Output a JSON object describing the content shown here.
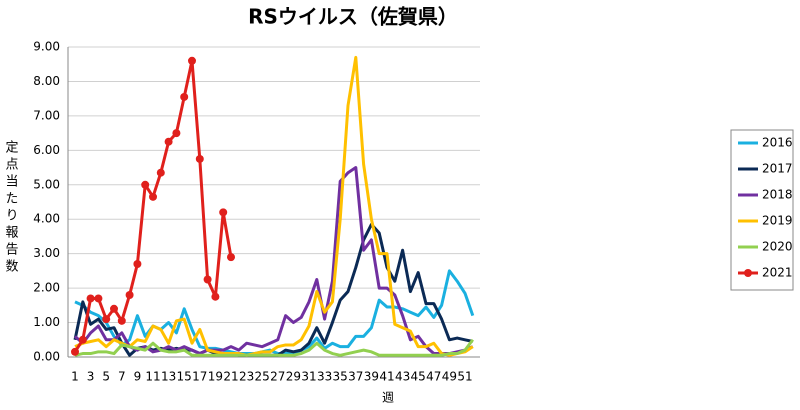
{
  "chart_data": {
    "type": "line",
    "title": "RSウイルス（佐賀県）",
    "x_label": "週",
    "y_label": "定点当たり報告数",
    "categories": [
      1,
      null,
      3,
      null,
      5,
      null,
      7,
      null,
      9,
      null,
      11,
      null,
      13,
      null,
      15,
      null,
      17,
      null,
      19,
      null,
      21,
      null,
      23,
      null,
      25,
      null,
      27,
      null,
      29,
      null,
      31,
      null,
      33,
      null,
      35,
      null,
      37,
      null,
      39,
      null,
      41,
      null,
      43,
      null,
      45,
      null,
      47,
      null,
      49,
      null,
      51,
      null
    ],
    "ylim": [
      0,
      9
    ],
    "yticks": [
      {
        "value": 0,
        "label": "0.00"
      },
      {
        "value": 1,
        "label": "1.00"
      },
      {
        "value": 2,
        "label": "2.00"
      },
      {
        "value": 3,
        "label": "3.00"
      },
      {
        "value": 4,
        "label": "4.00"
      },
      {
        "value": 5,
        "label": "5.00"
      },
      {
        "value": 6,
        "label": "6.00"
      },
      {
        "value": 7,
        "label": "7.00"
      },
      {
        "value": 8,
        "label": "8.00"
      },
      {
        "value": 9,
        "label": "9.00"
      }
    ],
    "grid": true,
    "legend": "right",
    "series": [
      {
        "name": "2016",
        "color": "#1ab0e0",
        "values": [
          1.6,
          1.5,
          1.3,
          1.2,
          1.0,
          0.6,
          0.35,
          0.5,
          1.2,
          0.6,
          0.9,
          0.8,
          1.0,
          0.7,
          1.4,
          0.8,
          0.3,
          0.25,
          0.25,
          0.2,
          0.15,
          0.1,
          0.1,
          0.1,
          0.15,
          0.2,
          0.1,
          0.1,
          0.1,
          0.2,
          0.3,
          0.55,
          0.25,
          0.4,
          0.3,
          0.3,
          0.6,
          0.6,
          0.85,
          1.65,
          1.45,
          1.45,
          1.4,
          1.3,
          1.2,
          1.45,
          1.15,
          1.5,
          2.5,
          2.2,
          1.85,
          1.2
        ]
      },
      {
        "name": "2017",
        "color": "#0b2a55",
        "values": [
          0.5,
          1.6,
          0.95,
          1.1,
          0.8,
          0.85,
          0.4,
          0.05,
          0.25,
          0.3,
          0.2,
          0.25,
          0.2,
          0.25,
          0.2,
          0.2,
          0.1,
          0.2,
          0.1,
          0.1,
          0.1,
          0.05,
          0.05,
          0.05,
          0.05,
          0.05,
          0.05,
          0.2,
          0.15,
          0.2,
          0.4,
          0.85,
          0.4,
          1.0,
          1.65,
          1.9,
          2.6,
          3.4,
          3.85,
          3.6,
          2.6,
          2.2,
          3.1,
          1.9,
          2.45,
          1.55,
          1.55,
          1.1,
          0.5,
          0.55,
          0.5,
          0.45
        ]
      },
      {
        "name": "2018",
        "color": "#7030a0",
        "values": [
          0.6,
          0.4,
          0.7,
          0.9,
          0.5,
          0.5,
          0.7,
          0.3,
          0.2,
          0.3,
          0.15,
          0.2,
          0.3,
          0.2,
          0.3,
          0.2,
          0.1,
          0.2,
          0.2,
          0.2,
          0.3,
          0.2,
          0.4,
          0.35,
          0.3,
          0.4,
          0.5,
          1.2,
          1.0,
          1.15,
          1.6,
          2.25,
          1.1,
          2.2,
          5.1,
          5.35,
          5.5,
          3.1,
          3.4,
          2.0,
          2.0,
          1.8,
          1.2,
          0.5,
          0.6,
          0.3,
          0.1,
          0.1,
          0.1,
          0.15,
          0.2,
          0.3
        ]
      },
      {
        "name": "2019",
        "color": "#ffc000",
        "values": [
          0.3,
          0.4,
          0.45,
          0.5,
          0.3,
          0.5,
          0.4,
          0.3,
          0.5,
          0.45,
          0.9,
          0.8,
          0.4,
          1.05,
          1.1,
          0.4,
          0.8,
          0.2,
          0.15,
          0.1,
          0.1,
          0.1,
          0.05,
          0.1,
          0.15,
          0.15,
          0.3,
          0.35,
          0.35,
          0.5,
          0.9,
          1.9,
          1.3,
          1.6,
          4.0,
          7.3,
          8.7,
          5.6,
          4.0,
          3.0,
          3.0,
          0.95,
          0.85,
          0.75,
          0.3,
          0.3,
          0.4,
          0.1,
          0.05,
          0.1,
          0.15,
          0.3
        ]
      },
      {
        "name": "2020",
        "color": "#92d050",
        "values": [
          0.05,
          0.1,
          0.1,
          0.15,
          0.15,
          0.1,
          0.35,
          0.3,
          0.25,
          0.2,
          0.4,
          0.2,
          0.15,
          0.15,
          0.2,
          0.05,
          0.05,
          0.05,
          0.05,
          0.05,
          0.05,
          0.05,
          0.05,
          0.05,
          0.05,
          0.05,
          0.05,
          0.05,
          0.05,
          0.1,
          0.2,
          0.4,
          0.2,
          0.1,
          0.05,
          0.1,
          0.15,
          0.2,
          0.15,
          0.05,
          0.05,
          0.05,
          0.05,
          0.05,
          0.05,
          0.05,
          0.05,
          0.05,
          0.1,
          0.1,
          0.2,
          0.5
        ]
      },
      {
        "name": "2021",
        "color": "#e0201c",
        "marker": "circle",
        "values": [
          0.15,
          0.5,
          1.7,
          1.7,
          1.1,
          1.4,
          1.05,
          1.8,
          2.7,
          5.0,
          4.65,
          5.35,
          6.25,
          6.5,
          7.55,
          8.6,
          5.75,
          2.25,
          1.75,
          4.2,
          2.9,
          null,
          null,
          null,
          null,
          null,
          null,
          null,
          null,
          null,
          null,
          null,
          null,
          null,
          null,
          null,
          null,
          null,
          null,
          null,
          null,
          null,
          null,
          null,
          null,
          null,
          null,
          null,
          null,
          null,
          null,
          null
        ]
      }
    ]
  }
}
